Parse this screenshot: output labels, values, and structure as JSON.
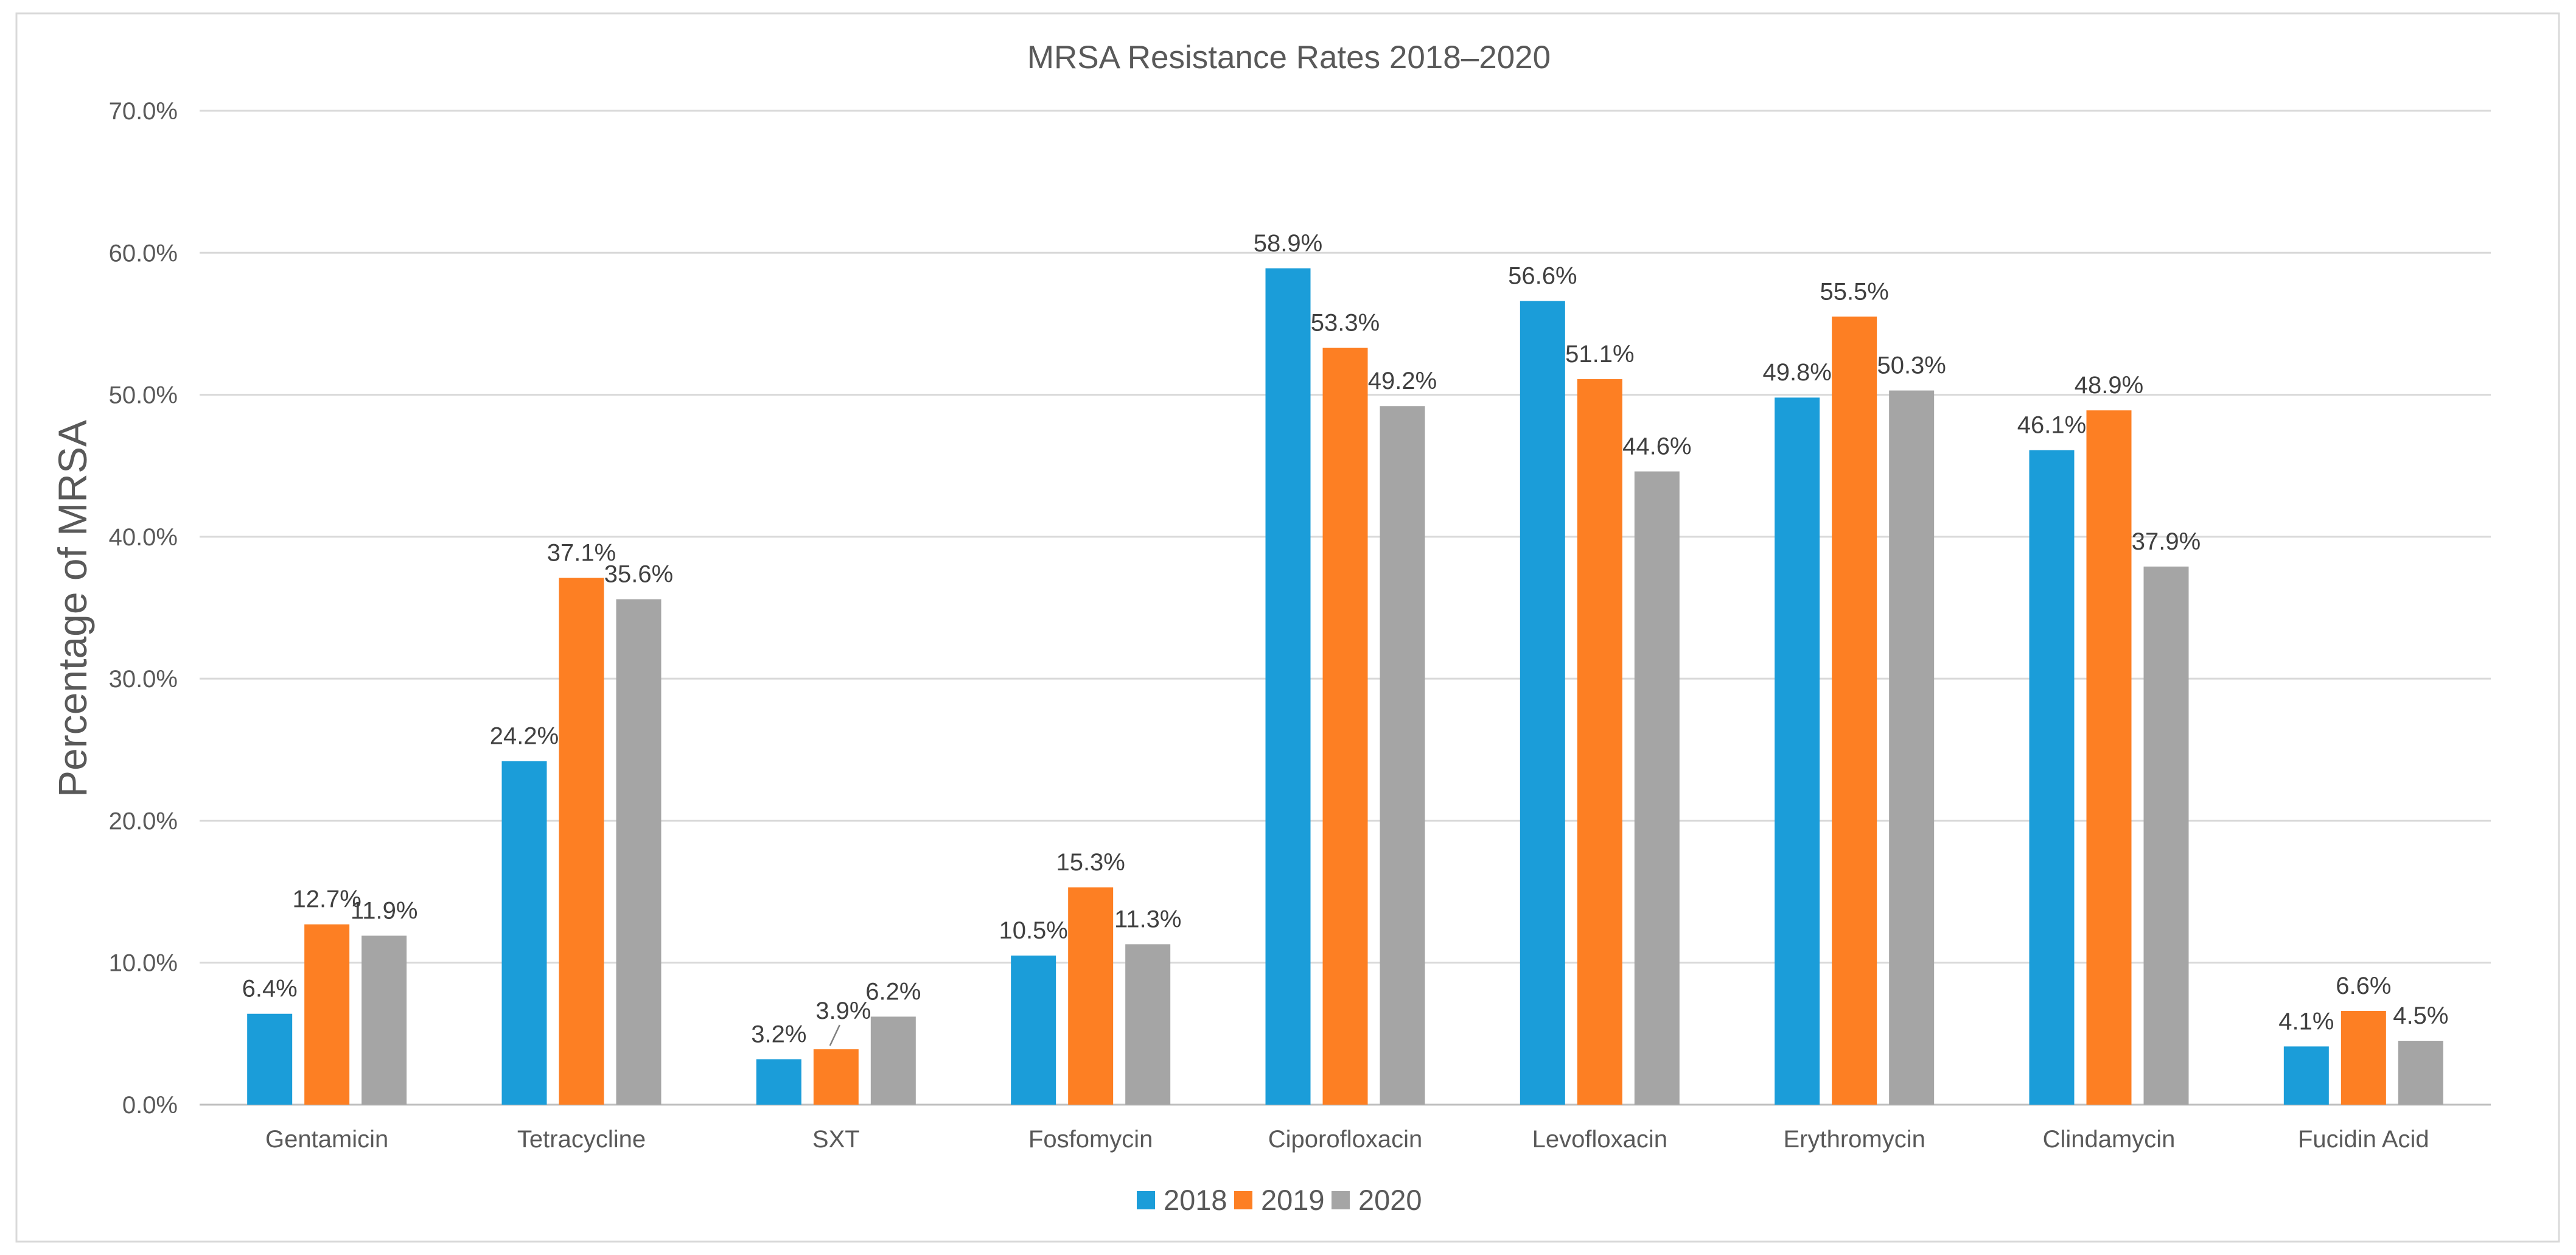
{
  "chart_data": {
    "type": "bar",
    "title": "MRSA Resistance Rates 2018–2020",
    "xlabel": "",
    "ylabel": "Percentage of MRSA",
    "ylim": [
      0,
      70
    ],
    "y_ticks": [
      "0.0%",
      "10.0%",
      "20.0%",
      "30.0%",
      "40.0%",
      "50.0%",
      "60.0%",
      "70.0%"
    ],
    "grid": true,
    "legend_position": "bottom",
    "categories": [
      "Gentamicin",
      "Tetracycline",
      "SXT",
      "Fosfomycin",
      "Ciporofloxacin",
      "Levofloxacin",
      "Erythromycin",
      "Clindamycin",
      "Fucidin Acid"
    ],
    "series": [
      {
        "name": "2018",
        "color": "#1b9dd9",
        "values": [
          6.4,
          24.2,
          3.2,
          10.5,
          58.9,
          56.6,
          49.8,
          46.1,
          4.1
        ],
        "labels": [
          "6.4%",
          "24.2%",
          "3.2%",
          "10.5%",
          "58.9%",
          "56.6%",
          "49.8%",
          "46.1%",
          "4.1%"
        ]
      },
      {
        "name": "2019",
        "color": "#fd7f23",
        "values": [
          12.7,
          37.1,
          3.9,
          15.3,
          53.3,
          51.1,
          55.5,
          48.9,
          6.6
        ],
        "labels": [
          "12.7%",
          "37.1%",
          "3.9%",
          "15.3%",
          "53.3%",
          "51.1%",
          "55.5%",
          "48.9%",
          "6.6%"
        ]
      },
      {
        "name": "2020",
        "color": "#a5a5a5",
        "values": [
          11.9,
          35.6,
          6.2,
          11.3,
          49.2,
          44.6,
          50.3,
          37.9,
          4.5
        ],
        "labels": [
          "11.9%",
          "35.6%",
          "6.2%",
          "11.3%",
          "49.2%",
          "44.6%",
          "50.3%",
          "37.9%",
          "4.5%"
        ]
      }
    ]
  }
}
